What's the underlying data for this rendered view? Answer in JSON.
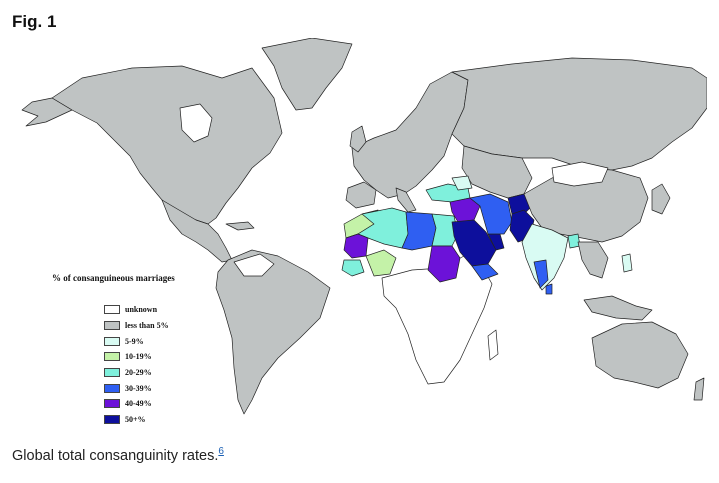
{
  "figure": {
    "title": "Fig. 1",
    "caption": "Global total consanguinity rates.",
    "footnote_ref": "6"
  },
  "legend": {
    "title": "% of consanguineous marriages",
    "items": [
      {
        "label": "unknown",
        "color": "#ffffff"
      },
      {
        "label": "less than 5%",
        "color": "#bfc3c3"
      },
      {
        "label": "5-9%",
        "color": "#d9fbf3"
      },
      {
        "label": "10-19%",
        "color": "#c4f2a8"
      },
      {
        "label": "20-29%",
        "color": "#7ff0dc"
      },
      {
        "label": "30-39%",
        "color": "#2f5ff2"
      },
      {
        "label": "40-49%",
        "color": "#6c12d8"
      },
      {
        "label": "50+%",
        "color": "#0d0f9c"
      }
    ]
  }
}
